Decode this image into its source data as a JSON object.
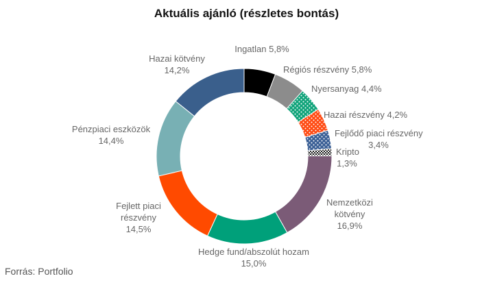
{
  "title": "Aktuális ajánló (részletes bontás)",
  "source": "Forrás: Portfolio",
  "chart_data": {
    "type": "pie",
    "donut": true,
    "title": "Aktuális ajánló (részletes bontás)",
    "unit": "%",
    "slices": [
      {
        "name": "Ingatlan",
        "value": 5.8,
        "value_label": "5,8%",
        "color": "#000000",
        "pattern": "solid"
      },
      {
        "name": "Régiós részvény",
        "value": 5.8,
        "value_label": "5,8%",
        "color": "#8c8c8c",
        "pattern": "solid"
      },
      {
        "name": "Nyersanyag",
        "value": 4.4,
        "value_label": "4,4%",
        "color": "#10a37a",
        "pattern": "dots"
      },
      {
        "name": "Hazai részvény",
        "value": 4.2,
        "value_label": "4,2%",
        "color": "#ff4a12",
        "pattern": "dots"
      },
      {
        "name": "Fejlődő piaci részvény",
        "value": 3.4,
        "value_label": "3,4%",
        "color": "#3a5f95",
        "pattern": "dots"
      },
      {
        "name": "Kripto",
        "value": 1.3,
        "value_label": "1,3%",
        "color": "#111111",
        "pattern": "checker"
      },
      {
        "name": "Nemzetközi kötvény",
        "value": 16.9,
        "value_label": "16,9%",
        "color": "#7b5b77",
        "pattern": "solid"
      },
      {
        "name": "Hedge fund/abszolút hozam",
        "value": 15.0,
        "value_label": "15,0%",
        "color": "#00a07a",
        "pattern": "solid"
      },
      {
        "name": "Fejlett piaci részvény",
        "value": 14.5,
        "value_label": "14,5%",
        "color": "#ff4a00",
        "pattern": "solid"
      },
      {
        "name": "Pénzpiaci eszközök",
        "value": 14.4,
        "value_label": "14,4%",
        "color": "#78b0b4",
        "pattern": "solid"
      },
      {
        "name": "Hazai kötvény",
        "value": 14.2,
        "value_label": "14,2%",
        "color": "#3a5f8c",
        "pattern": "solid"
      }
    ]
  }
}
